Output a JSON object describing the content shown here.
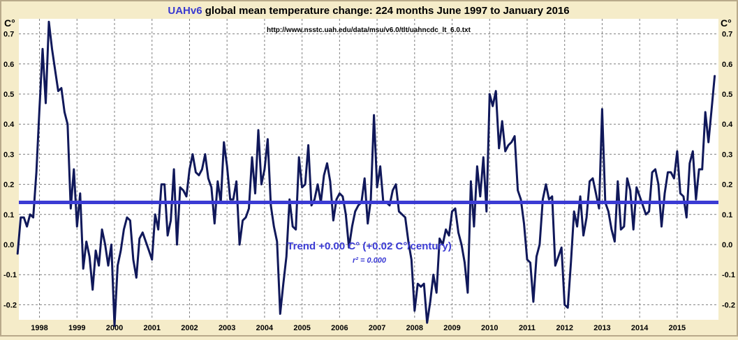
{
  "header": {
    "title_prefix": "UAHv6",
    "title_rest": " global mean temperature change: 224 months June 1997 to January 2016",
    "source_url": "http://www.nsstc.uah.edu/data/msu/v6.0/tlt/uahncdc_lt_6.0.txt"
  },
  "colors": {
    "background": "#f5ecc9",
    "frame": "#b8a98a",
    "plot_background": "#ffffff",
    "grid": "#7f7f7f",
    "series": "#10185a",
    "trend": "#3b3bd4",
    "title_accent": "#3a3ad0",
    "text": "#000000"
  },
  "annotation": {
    "trend_label": "Trend +0.00 C° (+0.02 C°/century)",
    "r2_label": "r² = 0.000"
  },
  "chart_data": {
    "type": "line",
    "title": "UAHv6 global mean temperature change: 224 months June 1997 to January 2016",
    "ylabel_left": "C°",
    "ylabel_right": "C°",
    "ylim": [
      -0.25,
      0.75
    ],
    "yticks": [
      -0.2,
      -0.1,
      0.0,
      0.1,
      0.2,
      0.3,
      0.4,
      0.5,
      0.6,
      0.7
    ],
    "ytick_labels": [
      "-0.2",
      "-0.1",
      "0.0",
      "0.1",
      "0.2",
      "0.3",
      "0.4",
      "0.5",
      "0.6",
      "0.7"
    ],
    "xlim": [
      1997.45,
      2016.1
    ],
    "xticks": [
      1998,
      1999,
      2000,
      2001,
      2002,
      2003,
      2004,
      2005,
      2006,
      2007,
      2008,
      2009,
      2010,
      2011,
      2012,
      2013,
      2014,
      2015
    ],
    "xtick_labels": [
      "1998",
      "1999",
      "2000",
      "2001",
      "2002",
      "2003",
      "2004",
      "2005",
      "2006",
      "2007",
      "2008",
      "2009",
      "2010",
      "2011",
      "2012",
      "2013",
      "2014",
      "2015"
    ],
    "grid": true,
    "x_start": "1997-06",
    "x_step": "1 month",
    "series": [
      {
        "name": "",
        "values": [
          -0.03,
          0.09,
          0.09,
          0.06,
          0.1,
          0.09,
          0.24,
          0.45,
          0.65,
          0.47,
          0.74,
          0.65,
          0.58,
          0.51,
          0.52,
          0.44,
          0.4,
          0.12,
          0.25,
          0.06,
          0.17,
          -0.08,
          0.01,
          -0.04,
          -0.15,
          -0.02,
          -0.07,
          0.05,
          0.0,
          -0.07,
          0.0,
          -0.27,
          -0.07,
          -0.02,
          0.05,
          0.09,
          0.08,
          -0.05,
          -0.11,
          0.02,
          0.04,
          0.01,
          -0.02,
          -0.05,
          0.1,
          0.05,
          0.2,
          0.2,
          0.03,
          0.08,
          0.25,
          0.0,
          0.19,
          0.18,
          0.16,
          0.25,
          0.3,
          0.24,
          0.23,
          0.25,
          0.3,
          0.22,
          0.19,
          0.07,
          0.21,
          0.14,
          0.34,
          0.26,
          0.15,
          0.15,
          0.21,
          0.0,
          0.08,
          0.09,
          0.12,
          0.29,
          0.17,
          0.38,
          0.2,
          0.25,
          0.35,
          0.13,
          0.06,
          0.01,
          -0.23,
          -0.13,
          -0.04,
          0.15,
          0.06,
          0.05,
          0.29,
          0.19,
          0.2,
          0.33,
          0.13,
          0.15,
          0.2,
          0.14,
          0.23,
          0.27,
          0.21,
          0.08,
          0.15,
          0.17,
          0.16,
          0.1,
          -0.01,
          0.06,
          0.11,
          0.13,
          0.14,
          0.22,
          0.07,
          0.15,
          0.43,
          0.19,
          0.26,
          0.14,
          0.14,
          0.13,
          0.18,
          0.2,
          0.11,
          0.1,
          0.09,
          0.01,
          -0.05,
          -0.22,
          -0.13,
          -0.14,
          -0.13,
          -0.26,
          -0.19,
          -0.1,
          -0.16,
          0.02,
          0.0,
          0.05,
          0.03,
          0.11,
          0.12,
          0.04,
          0.0,
          -0.06,
          -0.16,
          0.21,
          0.06,
          0.26,
          0.16,
          0.29,
          0.11,
          0.5,
          0.46,
          0.51,
          0.32,
          0.41,
          0.31,
          0.33,
          0.34,
          0.36,
          0.18,
          0.15,
          0.07,
          -0.05,
          -0.06,
          -0.19,
          -0.04,
          0.0,
          0.15,
          0.2,
          0.15,
          0.16,
          -0.07,
          -0.04,
          -0.01,
          -0.2,
          -0.21,
          -0.06,
          0.11,
          0.06,
          0.16,
          0.03,
          0.09,
          0.21,
          0.22,
          0.17,
          0.12,
          0.45,
          0.14,
          0.11,
          0.05,
          0.01,
          0.21,
          0.05,
          0.06,
          0.22,
          0.18,
          0.05,
          0.19,
          0.16,
          0.13,
          0.1,
          0.11,
          0.24,
          0.25,
          0.2,
          0.06,
          0.17,
          0.24,
          0.24,
          0.22,
          0.31,
          0.17,
          0.16,
          0.09,
          0.27,
          0.31,
          0.15,
          0.25,
          0.25,
          0.44,
          0.34,
          0.45,
          0.56
        ]
      }
    ],
    "trend": {
      "y_start": 0.14,
      "y_end": 0.14
    }
  }
}
